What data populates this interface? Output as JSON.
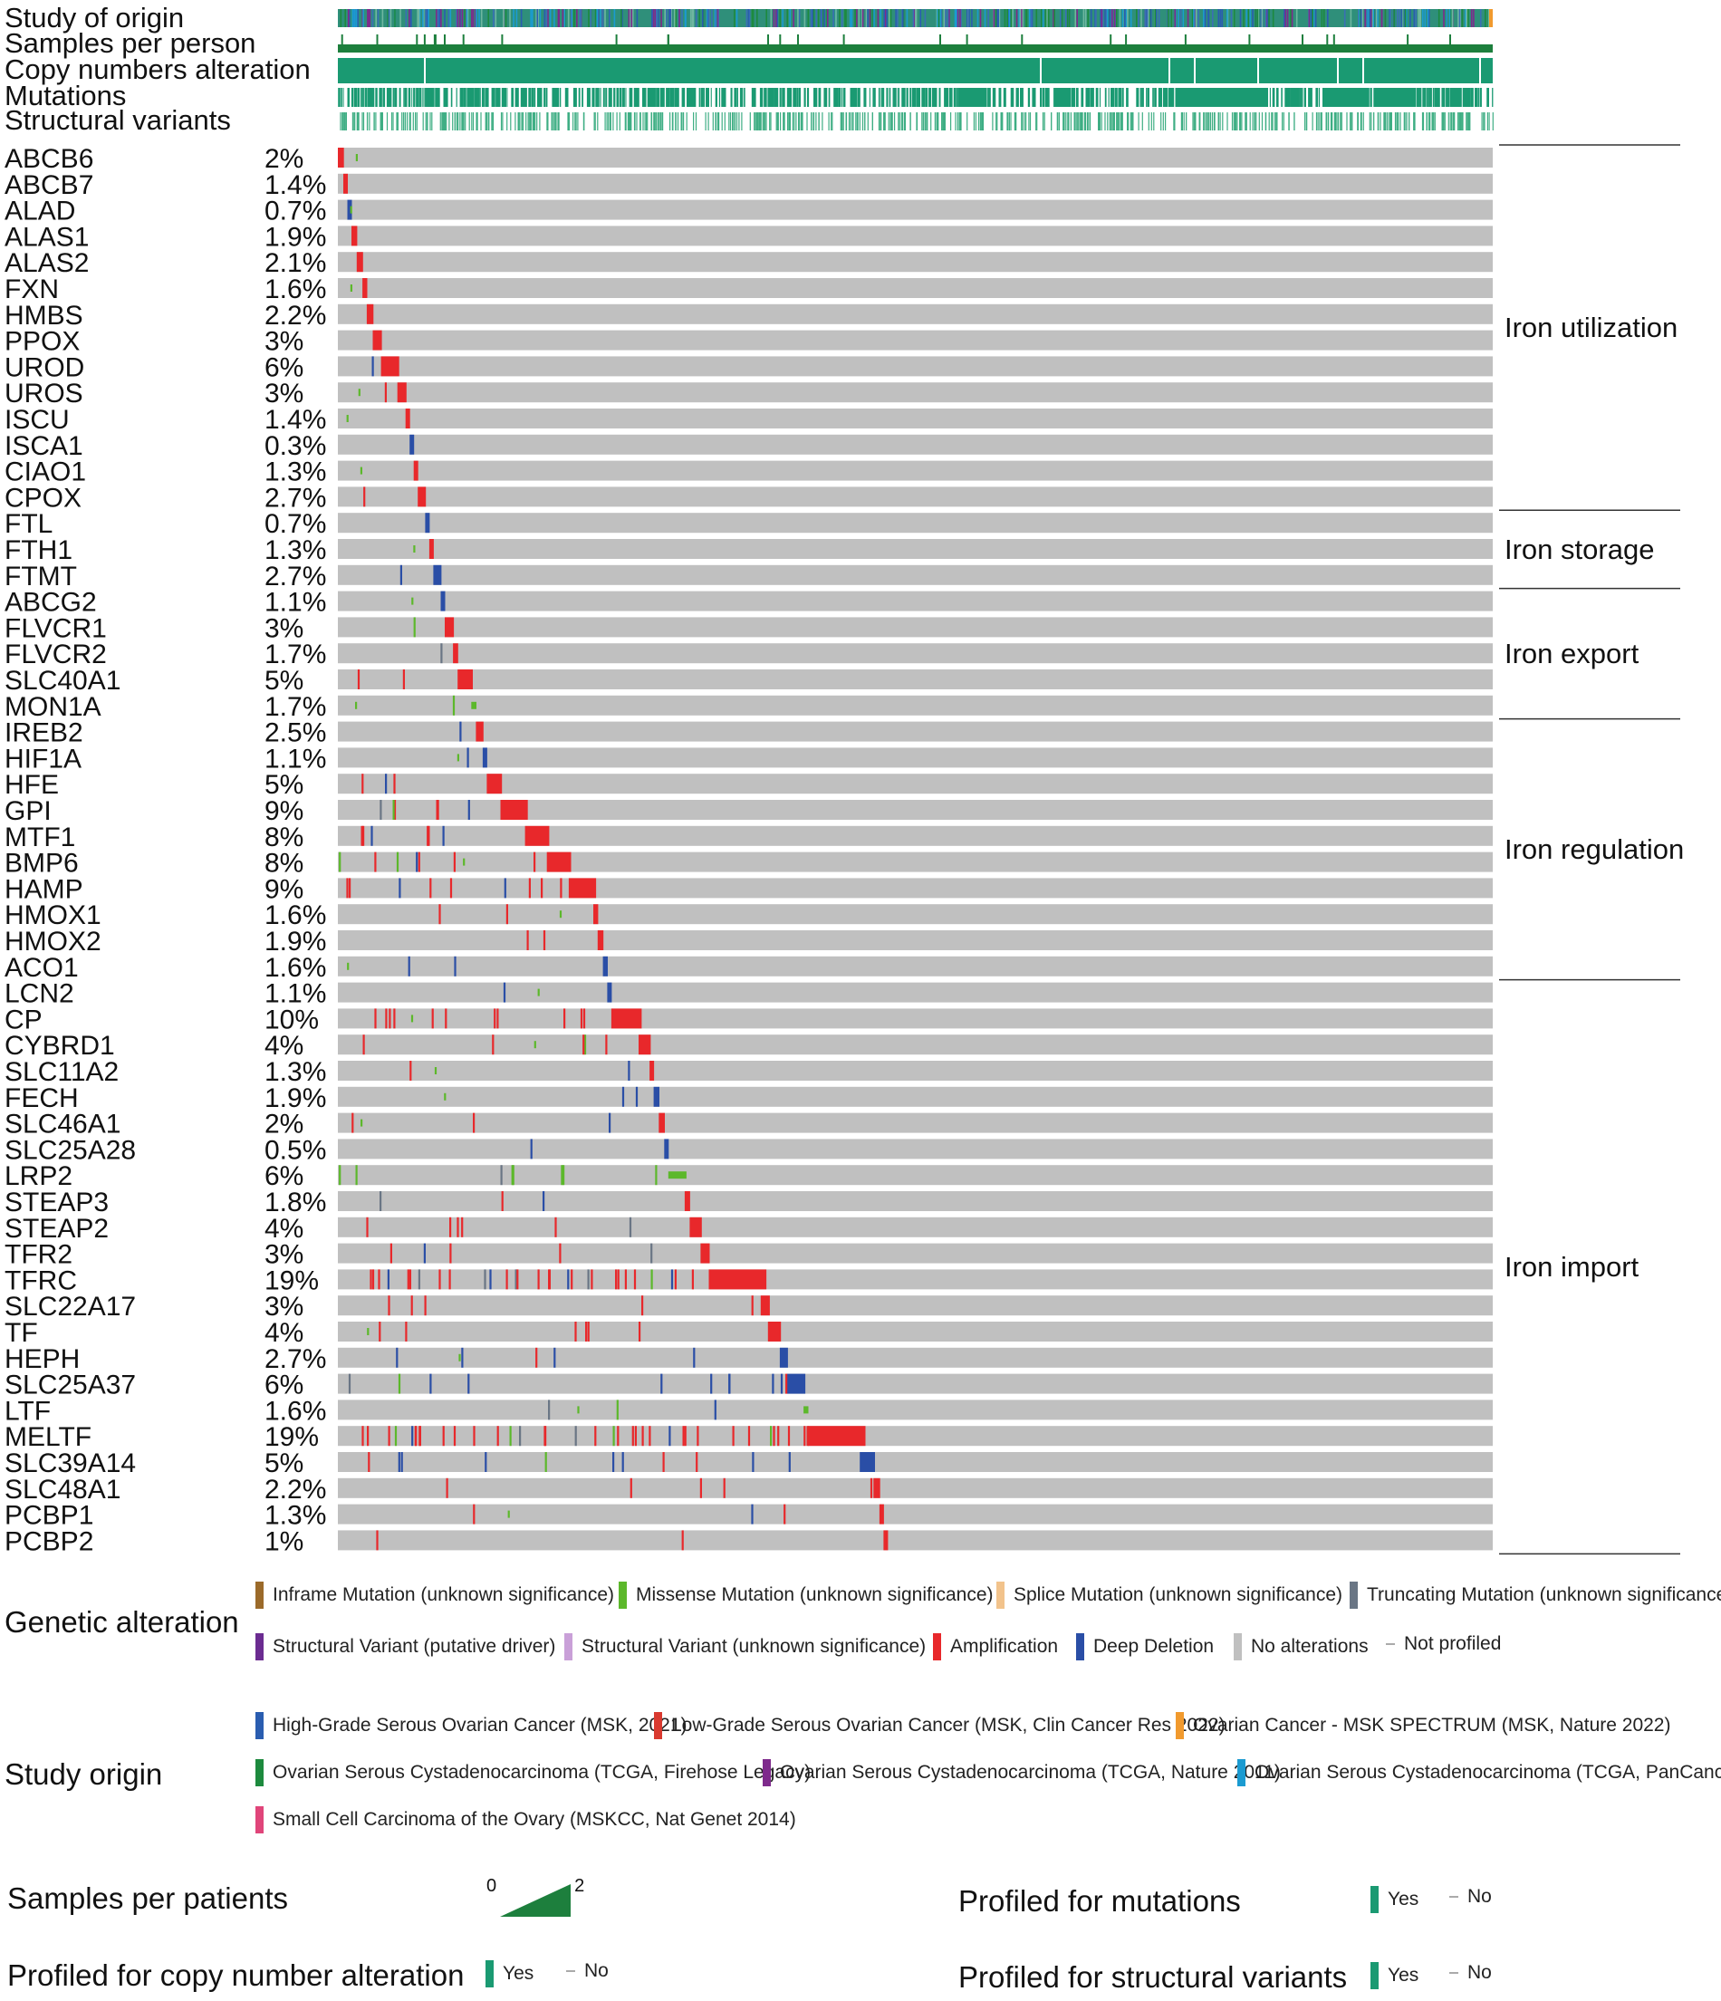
{
  "chart_data": {
    "type": "oncoprint",
    "tracks": [
      "Study of origin",
      "Samples per person",
      "Copy numbers alteration",
      "Mutations",
      "Structural variants"
    ],
    "genes": [
      {
        "name": "ABCB6",
        "pct": "2%",
        "n": 2.0,
        "alt": "amp"
      },
      {
        "name": "ABCB7",
        "pct": "1.4%",
        "n": 1.4,
        "alt": "amp"
      },
      {
        "name": "ALAD",
        "pct": "0.7%",
        "n": 0.7,
        "alt": "del"
      },
      {
        "name": "ALAS1",
        "pct": "1.9%",
        "n": 1.9,
        "alt": "amp"
      },
      {
        "name": "ALAS2",
        "pct": "2.1%",
        "n": 2.1,
        "alt": "amp"
      },
      {
        "name": "FXN",
        "pct": "1.6%",
        "n": 1.6,
        "alt": "amp"
      },
      {
        "name": "HMBS",
        "pct": "2.2%",
        "n": 2.2,
        "alt": "amp"
      },
      {
        "name": "PPOX",
        "pct": "3%",
        "n": 3.0,
        "alt": "amp"
      },
      {
        "name": "UROD",
        "pct": "6%",
        "n": 6.0,
        "alt": "amp"
      },
      {
        "name": "UROS",
        "pct": "3%",
        "n": 3.0,
        "alt": "amp"
      },
      {
        "name": "ISCU",
        "pct": "1.4%",
        "n": 1.4,
        "alt": "amp"
      },
      {
        "name": "ISCA1",
        "pct": "0.3%",
        "n": 0.3,
        "alt": "del"
      },
      {
        "name": "CIAO1",
        "pct": "1.3%",
        "n": 1.3,
        "alt": "amp"
      },
      {
        "name": "CPOX",
        "pct": "2.7%",
        "n": 2.7,
        "alt": "amp"
      },
      {
        "name": "FTL",
        "pct": "0.7%",
        "n": 0.7,
        "alt": "del"
      },
      {
        "name": "FTH1",
        "pct": "1.3%",
        "n": 1.3,
        "alt": "amp"
      },
      {
        "name": "FTMT",
        "pct": "2.7%",
        "n": 2.7,
        "alt": "del"
      },
      {
        "name": "ABCG2",
        "pct": "1.1%",
        "n": 1.1,
        "alt": "del"
      },
      {
        "name": "FLVCR1",
        "pct": "3%",
        "n": 3.0,
        "alt": "amp"
      },
      {
        "name": "FLVCR2",
        "pct": "1.7%",
        "n": 1.7,
        "alt": "amp"
      },
      {
        "name": "SLC40A1",
        "pct": "5%",
        "n": 5.0,
        "alt": "amp"
      },
      {
        "name": "MON1A",
        "pct": "1.7%",
        "n": 1.7,
        "alt": "mut"
      },
      {
        "name": "IREB2",
        "pct": "2.5%",
        "n": 2.5,
        "alt": "amp"
      },
      {
        "name": "HIF1A",
        "pct": "1.1%",
        "n": 1.1,
        "alt": "del"
      },
      {
        "name": "HFE",
        "pct": "5%",
        "n": 5.0,
        "alt": "amp"
      },
      {
        "name": "GPI",
        "pct": "9%",
        "n": 9.0,
        "alt": "amp"
      },
      {
        "name": "MTF1",
        "pct": "8%",
        "n": 8.0,
        "alt": "amp"
      },
      {
        "name": "BMP6",
        "pct": "8%",
        "n": 8.0,
        "alt": "amp"
      },
      {
        "name": "HAMP",
        "pct": "9%",
        "n": 9.0,
        "alt": "amp"
      },
      {
        "name": "HMOX1",
        "pct": "1.6%",
        "n": 1.6,
        "alt": "amp"
      },
      {
        "name": "HMOX2",
        "pct": "1.9%",
        "n": 1.9,
        "alt": "amp"
      },
      {
        "name": "ACO1",
        "pct": "1.6%",
        "n": 1.6,
        "alt": "del"
      },
      {
        "name": "LCN2",
        "pct": "1.1%",
        "n": 1.1,
        "alt": "del"
      },
      {
        "name": "CP",
        "pct": "10%",
        "n": 10.0,
        "alt": "amp"
      },
      {
        "name": "CYBRD1",
        "pct": "4%",
        "n": 4.0,
        "alt": "amp"
      },
      {
        "name": "SLC11A2",
        "pct": "1.3%",
        "n": 1.3,
        "alt": "amp"
      },
      {
        "name": "FECH",
        "pct": "1.9%",
        "n": 1.9,
        "alt": "del"
      },
      {
        "name": "SLC46A1",
        "pct": "2%",
        "n": 2.0,
        "alt": "amp"
      },
      {
        "name": "SLC25A28",
        "pct": "0.5%",
        "n": 0.5,
        "alt": "del"
      },
      {
        "name": "LRP2",
        "pct": "6%",
        "n": 6.0,
        "alt": "mut"
      },
      {
        "name": "STEAP3",
        "pct": "1.8%",
        "n": 1.8,
        "alt": "amp"
      },
      {
        "name": "STEAP2",
        "pct": "4%",
        "n": 4.0,
        "alt": "amp"
      },
      {
        "name": "TFR2",
        "pct": "3%",
        "n": 3.0,
        "alt": "amp"
      },
      {
        "name": "TFRC",
        "pct": "19%",
        "n": 19.0,
        "alt": "amp"
      },
      {
        "name": "SLC22A17",
        "pct": "3%",
        "n": 3.0,
        "alt": "amp"
      },
      {
        "name": "TF",
        "pct": "4%",
        "n": 4.0,
        "alt": "amp"
      },
      {
        "name": "HEPH",
        "pct": "2.7%",
        "n": 2.7,
        "alt": "del"
      },
      {
        "name": "SLC25A37",
        "pct": "6%",
        "n": 6.0,
        "alt": "del"
      },
      {
        "name": "LTF",
        "pct": "1.6%",
        "n": 1.6,
        "alt": "mut"
      },
      {
        "name": "MELTF",
        "pct": "19%",
        "n": 19.0,
        "alt": "amp"
      },
      {
        "name": "SLC39A14",
        "pct": "5%",
        "n": 5.0,
        "alt": "del"
      },
      {
        "name": "SLC48A1",
        "pct": "2.2%",
        "n": 2.2,
        "alt": "amp"
      },
      {
        "name": "PCBP1",
        "pct": "1.3%",
        "n": 1.3,
        "alt": "amp"
      },
      {
        "name": "PCBP2",
        "pct": "1%",
        "n": 1.0,
        "alt": "amp"
      }
    ],
    "categories": [
      {
        "label": "Iron utilization",
        "genes": [
          "ABCB6",
          "CPOX"
        ]
      },
      {
        "label": "Iron storage",
        "genes": [
          "FTL",
          "FTMT"
        ]
      },
      {
        "label": "Iron export",
        "genes": [
          "ABCG2",
          "MON1A"
        ]
      },
      {
        "label": "Iron regulation",
        "genes": [
          "IREB2",
          "ACO1"
        ]
      },
      {
        "label": "Iron import",
        "genes": [
          "LCN2",
          "PCBP2"
        ]
      }
    ]
  },
  "colors": {
    "amp": "#e8282b",
    "del": "#2a4ea6",
    "missense": "#5cb82b",
    "truncating": "#6a7685",
    "none": "#c0c0c0",
    "teal": "#1a9a72",
    "green": "#1d7f3d",
    "splice": "#f2c38c",
    "inframe": "#9b6a2a",
    "sv_driver": "#6b2c91",
    "sv_unknown": "#c9a0d8",
    "hgsoc": "#2a5db0",
    "lgsoc": "#d93a30",
    "spectrum": "#f19a2e",
    "tcga_fh": "#1d8a3e",
    "tcga_nature": "#7e2a8c",
    "tcga_pan": "#1b9bd1",
    "sccc": "#e0457a"
  },
  "legend": {
    "genetic_title": "Genetic alteration",
    "genetic_items": [
      "Inframe Mutation (unknown significance)",
      "Missense Mutation (unknown significance)",
      "Splice Mutation (unknown significance)",
      "Truncating Mutation (unknown significance)",
      "Structural Variant (putative driver)",
      "Structural Variant (unknown significance)",
      "Amplification",
      "Deep Deletion",
      "No alterations",
      "Not profiled"
    ],
    "study_title": "Study origin",
    "study_items": [
      "High-Grade Serous Ovarian Cancer (MSK, 2021)",
      "Low-Grade Serous Ovarian Cancer (MSK, Clin Cancer Res 2022)",
      "Ovarian Cancer - MSK SPECTRUM (MSK, Nature 2022)",
      "Ovarian Serous Cystadenocarcinoma (TCGA, Firehose Legacy)",
      "Ovarian Serous Cystadenocarcinoma (TCGA, Nature 2011)",
      "Ovarian Serous Cystadenocarcinoma (TCGA, PanCancer Atlas)",
      "Small Cell Carcinoma of the Ovary (MSKCC, Nat Genet 2014)"
    ],
    "samples_title": "Samples per patients",
    "samples_min": "0",
    "samples_max": "2",
    "prof_mut_title": "Profiled for mutations",
    "prof_cna_title": "Profiled for copy number alteration",
    "prof_sv_title": "Profiled for structural variants",
    "yes": "Yes",
    "no": "No"
  }
}
